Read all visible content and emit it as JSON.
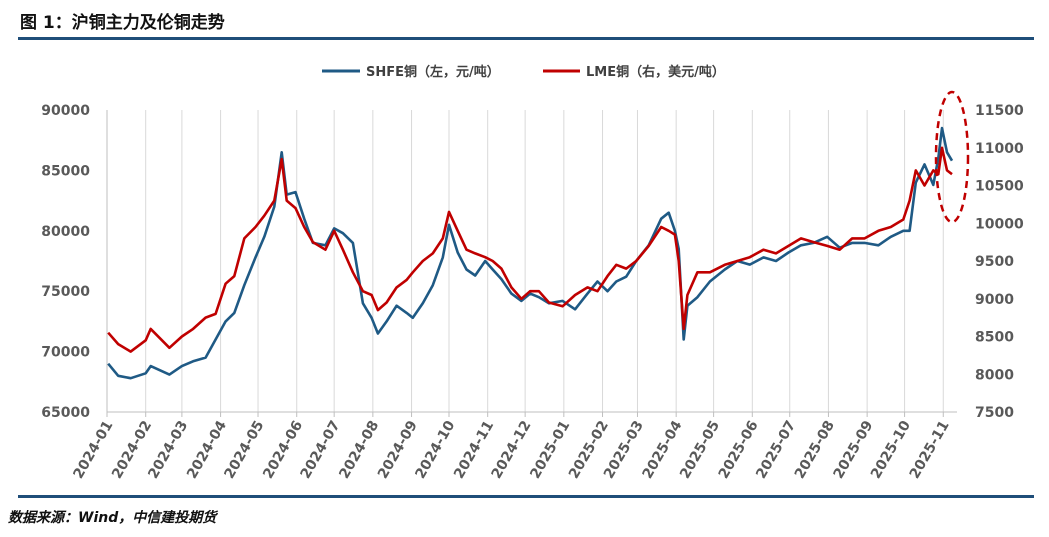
{
  "figure": {
    "title": "图 1：沪铜主力及伦铜走势",
    "source": "数据来源：Wind，中信建投期货"
  },
  "colors": {
    "shfe": "#1f5a85",
    "lme": "#c00000",
    "grid": "#d9d9d9",
    "rule": "#1f4e79"
  },
  "chart_data": {
    "type": "line",
    "x_ticks": [
      "2024-01",
      "2024-02",
      "2024-03",
      "2024-04",
      "2024-05",
      "2024-06",
      "2024-07",
      "2024-08",
      "2024-09",
      "2024-10",
      "2024-11",
      "2024-12",
      "2025-01",
      "2025-02",
      "2025-03",
      "2025-04",
      "2025-05",
      "2025-06",
      "2025-07",
      "2025-08",
      "2025-09",
      "2025-10",
      "2025-11"
    ],
    "y_left": {
      "ylim": [
        65000,
        90000
      ],
      "ticks": [
        65000,
        70000,
        75000,
        80000,
        85000,
        90000
      ],
      "tick_labels": [
        "65000",
        "70000",
        "75000",
        "80000",
        "85000",
        "90000"
      ]
    },
    "y_right": {
      "ylim": [
        7500,
        11500
      ],
      "ticks": [
        7500,
        8000,
        8500,
        9000,
        9500,
        10000,
        10500,
        11000,
        11500
      ],
      "tick_labels": [
        "7500",
        "8000",
        "8500",
        "9000",
        "9500",
        "10000",
        "10500",
        "11000",
        "11500"
      ]
    },
    "grid": "vertical",
    "legend_position": "top-center",
    "annotation": "dashed red ellipse around latest values",
    "series": [
      {
        "name": "SHFE铜（左，元/吨）",
        "axis": "left",
        "x": [
          "2024-01-02",
          "2024-01-10",
          "2024-01-20",
          "2024-02-01",
          "2024-02-05",
          "2024-02-20",
          "2024-03-01",
          "2024-03-10",
          "2024-03-20",
          "2024-03-28",
          "2024-04-05",
          "2024-04-12",
          "2024-04-20",
          "2024-04-29",
          "2024-05-06",
          "2024-05-14",
          "2024-05-20",
          "2024-05-24",
          "2024-05-31",
          "2024-06-07",
          "2024-06-14",
          "2024-06-24",
          "2024-07-01",
          "2024-07-08",
          "2024-07-16",
          "2024-07-24",
          "2024-07-31",
          "2024-08-05",
          "2024-08-12",
          "2024-08-20",
          "2024-08-28",
          "2024-09-02",
          "2024-09-10",
          "2024-09-18",
          "2024-09-26",
          "2024-10-01",
          "2024-10-08",
          "2024-10-15",
          "2024-10-22",
          "2024-10-30",
          "2024-11-05",
          "2024-11-12",
          "2024-11-20",
          "2024-11-28",
          "2024-12-05",
          "2024-12-12",
          "2024-12-20",
          "2024-12-31",
          "2025-01-10",
          "2025-01-20",
          "2025-01-28",
          "2025-02-05",
          "2025-02-12",
          "2025-02-20",
          "2025-02-28",
          "2025-03-10",
          "2025-03-20",
          "2025-03-26",
          "2025-03-31",
          "2025-04-03",
          "2025-04-07",
          "2025-04-10",
          "2025-04-18",
          "2025-04-28",
          "2025-05-10",
          "2025-05-20",
          "2025-05-30",
          "2025-06-10",
          "2025-06-20",
          "2025-06-30",
          "2025-07-10",
          "2025-07-20",
          "2025-07-31",
          "2025-08-10",
          "2025-08-20",
          "2025-08-30",
          "2025-09-10",
          "2025-09-20",
          "2025-09-30",
          "2025-10-05",
          "2025-10-10",
          "2025-10-17",
          "2025-10-24",
          "2025-10-28",
          "2025-10-31",
          "2025-11-04",
          "2025-11-08"
        ],
        "values": [
          69000,
          68000,
          67800,
          68200,
          68800,
          68100,
          68800,
          69200,
          69500,
          71000,
          72500,
          73200,
          75500,
          77800,
          79500,
          82000,
          86500,
          83000,
          83200,
          81000,
          79000,
          78800,
          80200,
          79800,
          79000,
          74000,
          72800,
          71500,
          72500,
          73800,
          73200,
          72800,
          74000,
          75500,
          77800,
          80500,
          78200,
          76800,
          76300,
          77500,
          76800,
          76000,
          74800,
          74200,
          74800,
          74500,
          74000,
          74200,
          73500,
          74800,
          75800,
          75000,
          75800,
          76200,
          77500,
          78800,
          81000,
          81500,
          80000,
          78500,
          71000,
          73800,
          74500,
          75800,
          76800,
          77500,
          77200,
          77800,
          77500,
          78200,
          78800,
          79000,
          79500,
          78600,
          79000,
          79000,
          78800,
          79500,
          80000,
          80000,
          84000,
          85500,
          83800,
          86000,
          88500,
          86500,
          85800
        ]
      },
      {
        "name": "LME铜（右，美元/吨）",
        "axis": "right",
        "x": [
          "2024-01-02",
          "2024-01-10",
          "2024-01-20",
          "2024-02-01",
          "2024-02-05",
          "2024-02-20",
          "2024-03-01",
          "2024-03-10",
          "2024-03-20",
          "2024-03-28",
          "2024-04-05",
          "2024-04-12",
          "2024-04-20",
          "2024-04-29",
          "2024-05-06",
          "2024-05-14",
          "2024-05-20",
          "2024-05-24",
          "2024-05-31",
          "2024-06-07",
          "2024-06-14",
          "2024-06-24",
          "2024-07-01",
          "2024-07-08",
          "2024-07-16",
          "2024-07-24",
          "2024-07-31",
          "2024-08-05",
          "2024-08-12",
          "2024-08-20",
          "2024-08-28",
          "2024-09-02",
          "2024-09-10",
          "2024-09-18",
          "2024-09-26",
          "2024-10-01",
          "2024-10-08",
          "2024-10-15",
          "2024-10-22",
          "2024-10-30",
          "2024-11-05",
          "2024-11-12",
          "2024-11-20",
          "2024-11-28",
          "2024-12-05",
          "2024-12-12",
          "2024-12-20",
          "2024-12-31",
          "2025-01-10",
          "2025-01-20",
          "2025-01-28",
          "2025-02-05",
          "2025-02-12",
          "2025-02-20",
          "2025-02-28",
          "2025-03-10",
          "2025-03-20",
          "2025-03-26",
          "2025-03-31",
          "2025-04-03",
          "2025-04-07",
          "2025-04-10",
          "2025-04-18",
          "2025-04-28",
          "2025-05-10",
          "2025-05-20",
          "2025-05-30",
          "2025-06-10",
          "2025-06-20",
          "2025-06-30",
          "2025-07-10",
          "2025-07-20",
          "2025-07-31",
          "2025-08-10",
          "2025-08-20",
          "2025-08-30",
          "2025-09-10",
          "2025-09-20",
          "2025-09-30",
          "2025-10-05",
          "2025-10-10",
          "2025-10-17",
          "2025-10-24",
          "2025-10-28",
          "2025-10-31",
          "2025-11-04",
          "2025-11-08"
        ],
        "values": [
          8550,
          8400,
          8300,
          8450,
          8600,
          8350,
          8500,
          8600,
          8750,
          8800,
          9200,
          9300,
          9800,
          9950,
          10100,
          10300,
          10850,
          10300,
          10200,
          9950,
          9750,
          9650,
          9900,
          9650,
          9350,
          9100,
          9050,
          8850,
          8950,
          9150,
          9250,
          9350,
          9500,
          9600,
          9800,
          10150,
          9900,
          9650,
          9600,
          9550,
          9500,
          9400,
          9150,
          9000,
          9100,
          9100,
          8950,
          8900,
          9050,
          9150,
          9100,
          9300,
          9450,
          9400,
          9500,
          9700,
          9950,
          9900,
          9850,
          9500,
          8600,
          9050,
          9350,
          9350,
          9450,
          9500,
          9550,
          9650,
          9600,
          9700,
          9800,
          9750,
          9700,
          9650,
          9800,
          9800,
          9900,
          9950,
          10050,
          10300,
          10700,
          10500,
          10700,
          10650,
          11000,
          10700,
          10650
        ]
      }
    ]
  }
}
